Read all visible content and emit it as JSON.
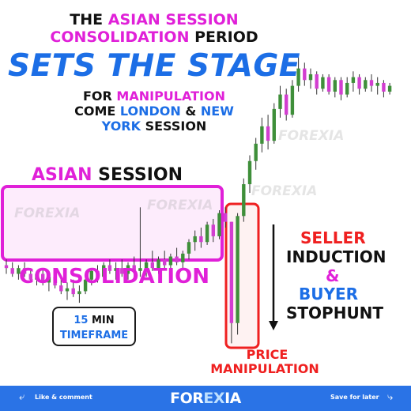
{
  "headline": {
    "line1_a": "THE ",
    "line1_b": "ASIAN SESSION",
    "line2_a": "CONSOLIDATION",
    "line2_b": " PERIOD",
    "line3": "SETS THE STAGE",
    "line4_a": "FOR ",
    "line4_b": "MANIPULATION",
    "line5_a": "COME ",
    "line5_b": "LONDON",
    "line5_c": " & ",
    "line5_d": "NEW",
    "line6_a": "YORK",
    "line6_b": " SESSION"
  },
  "labels": {
    "asian_a": "ASIAN",
    "asian_b": " SESSION",
    "consolidation": "CONSOLIDATION",
    "seller": "SELLER",
    "induction": "INDUCTION",
    "amp": "&",
    "buyer": "BUYER",
    "stophunt": "STOPHUNT",
    "price": "PRICE",
    "manipulation": "MANIPULATION",
    "tf_num": "15",
    "tf_min": " MIN",
    "tf_word": "TIMEFRAME"
  },
  "footer": {
    "like": "Like & comment",
    "save": "Save for later",
    "brand_a": "FOR",
    "brand_b": "EX",
    "brand_c": "IA"
  },
  "watermark": "FOREXIA",
  "colors": {
    "pink": "#e020d8",
    "red": "#ef2020",
    "blue": "#1c6ee6",
    "bull": "#3f8f3a",
    "bear": "#d23ed0",
    "footer": "#2a73e6"
  },
  "chart_data": {
    "type": "candlestick",
    "timeframe": "15 MIN",
    "ylim": [
      0,
      100
    ],
    "candles": [
      {
        "o": 28,
        "h": 30,
        "l": 25,
        "c": 27
      },
      {
        "o": 27,
        "h": 29,
        "l": 24,
        "c": 25
      },
      {
        "o": 25,
        "h": 28,
        "l": 23,
        "c": 27
      },
      {
        "o": 27,
        "h": 29,
        "l": 24,
        "c": 25
      },
      {
        "o": 25,
        "h": 27,
        "l": 22,
        "c": 23
      },
      {
        "o": 23,
        "h": 26,
        "l": 21,
        "c": 25
      },
      {
        "o": 25,
        "h": 27,
        "l": 21,
        "c": 22
      },
      {
        "o": 22,
        "h": 25,
        "l": 19,
        "c": 24
      },
      {
        "o": 24,
        "h": 26,
        "l": 20,
        "c": 21
      },
      {
        "o": 21,
        "h": 24,
        "l": 18,
        "c": 19
      },
      {
        "o": 19,
        "h": 22,
        "l": 16,
        "c": 20
      },
      {
        "o": 20,
        "h": 23,
        "l": 17,
        "c": 18
      },
      {
        "o": 18,
        "h": 21,
        "l": 15,
        "c": 19
      },
      {
        "o": 19,
        "h": 24,
        "l": 18,
        "c": 23
      },
      {
        "o": 23,
        "h": 27,
        "l": 21,
        "c": 26
      },
      {
        "o": 26,
        "h": 28,
        "l": 22,
        "c": 24
      },
      {
        "o": 24,
        "h": 29,
        "l": 23,
        "c": 28
      },
      {
        "o": 28,
        "h": 30,
        "l": 25,
        "c": 26
      },
      {
        "o": 26,
        "h": 29,
        "l": 23,
        "c": 27
      },
      {
        "o": 27,
        "h": 30,
        "l": 24,
        "c": 25
      },
      {
        "o": 25,
        "h": 29,
        "l": 23,
        "c": 28
      },
      {
        "o": 28,
        "h": 31,
        "l": 24,
        "c": 26
      },
      {
        "o": 26,
        "h": 48,
        "l": 24,
        "c": 27
      },
      {
        "o": 27,
        "h": 30,
        "l": 24,
        "c": 29
      },
      {
        "o": 29,
        "h": 33,
        "l": 26,
        "c": 27
      },
      {
        "o": 27,
        "h": 31,
        "l": 25,
        "c": 30
      },
      {
        "o": 30,
        "h": 33,
        "l": 27,
        "c": 28
      },
      {
        "o": 28,
        "h": 32,
        "l": 26,
        "c": 31
      },
      {
        "o": 31,
        "h": 34,
        "l": 28,
        "c": 29
      },
      {
        "o": 29,
        "h": 33,
        "l": 27,
        "c": 32
      },
      {
        "o": 32,
        "h": 37,
        "l": 30,
        "c": 36
      },
      {
        "o": 36,
        "h": 40,
        "l": 33,
        "c": 38
      },
      {
        "o": 38,
        "h": 41,
        "l": 34,
        "c": 36
      },
      {
        "o": 36,
        "h": 43,
        "l": 35,
        "c": 42
      },
      {
        "o": 42,
        "h": 44,
        "l": 36,
        "c": 38
      },
      {
        "o": 38,
        "h": 47,
        "l": 37,
        "c": 46
      },
      {
        "o": 46,
        "h": 48,
        "l": 41,
        "c": 43
      },
      {
        "o": 43,
        "h": 43,
        "l": 1,
        "c": 8
      },
      {
        "o": 8,
        "h": 46,
        "l": 4,
        "c": 45
      },
      {
        "o": 45,
        "h": 58,
        "l": 43,
        "c": 56
      },
      {
        "o": 56,
        "h": 66,
        "l": 53,
        "c": 64
      },
      {
        "o": 64,
        "h": 72,
        "l": 61,
        "c": 70
      },
      {
        "o": 70,
        "h": 79,
        "l": 67,
        "c": 76
      },
      {
        "o": 76,
        "h": 80,
        "l": 68,
        "c": 71
      },
      {
        "o": 71,
        "h": 84,
        "l": 70,
        "c": 82
      },
      {
        "o": 82,
        "h": 90,
        "l": 79,
        "c": 87
      },
      {
        "o": 87,
        "h": 89,
        "l": 78,
        "c": 80
      },
      {
        "o": 80,
        "h": 92,
        "l": 79,
        "c": 90
      },
      {
        "o": 90,
        "h": 100,
        "l": 88,
        "c": 96
      },
      {
        "o": 96,
        "h": 98,
        "l": 90,
        "c": 92
      },
      {
        "o": 92,
        "h": 96,
        "l": 89,
        "c": 94
      },
      {
        "o": 94,
        "h": 95,
        "l": 87,
        "c": 89
      },
      {
        "o": 89,
        "h": 94,
        "l": 88,
        "c": 93
      },
      {
        "o": 93,
        "h": 94,
        "l": 87,
        "c": 88
      },
      {
        "o": 88,
        "h": 93,
        "l": 86,
        "c": 92
      },
      {
        "o": 92,
        "h": 93,
        "l": 85,
        "c": 87
      },
      {
        "o": 87,
        "h": 93,
        "l": 86,
        "c": 91
      },
      {
        "o": 91,
        "h": 95,
        "l": 88,
        "c": 93
      },
      {
        "o": 93,
        "h": 94,
        "l": 87,
        "c": 89
      },
      {
        "o": 89,
        "h": 93,
        "l": 88,
        "c": 92
      },
      {
        "o": 92,
        "h": 94,
        "l": 88,
        "c": 90
      },
      {
        "o": 90,
        "h": 93,
        "l": 87,
        "c": 91
      },
      {
        "o": 91,
        "h": 92,
        "l": 86,
        "c": 88
      },
      {
        "o": 88,
        "h": 91,
        "l": 87,
        "c": 90
      }
    ]
  }
}
